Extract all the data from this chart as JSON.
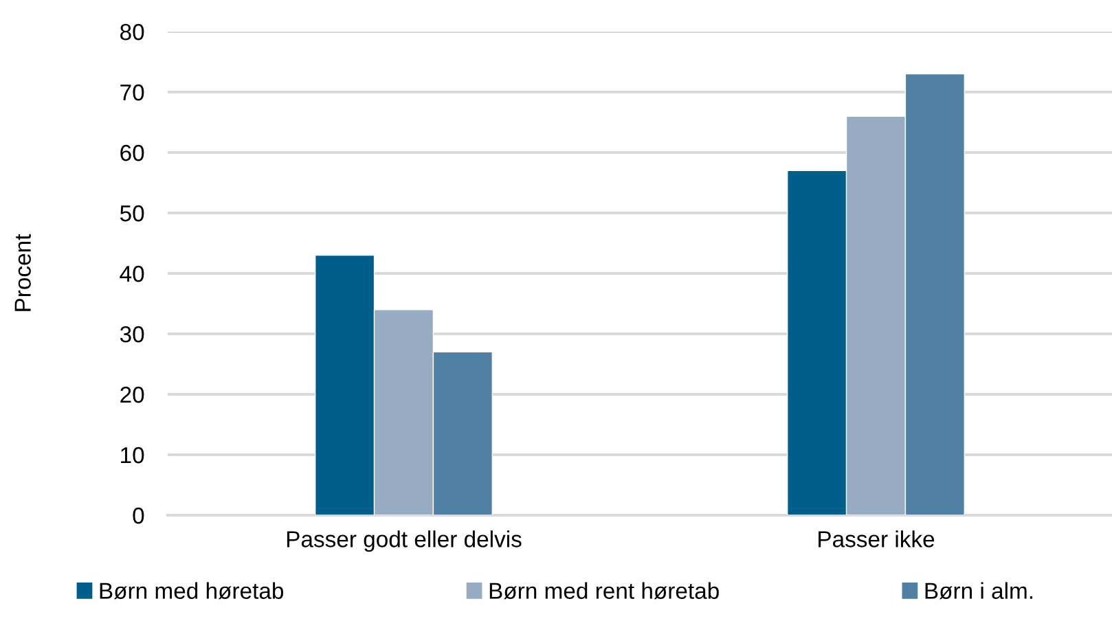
{
  "chart_data": {
    "type": "bar",
    "ylabel": "Procent",
    "categories": [
      "Passer godt eller delvis",
      "Passer ikke"
    ],
    "series": [
      {
        "name": "Børn med høretab",
        "color": "#005f8a",
        "values": [
          43,
          57
        ]
      },
      {
        "name": "Børn med rent høretab",
        "color": "#97acc3",
        "values": [
          34,
          66
        ]
      },
      {
        "name": "Børn i alm.",
        "color": "#4f7fa3",
        "values": [
          27,
          73
        ]
      }
    ],
    "ylim": [
      0,
      80
    ],
    "yticks": [
      0,
      10,
      20,
      30,
      40,
      50,
      60,
      70,
      80
    ],
    "grid": "y",
    "legend": "bottom"
  }
}
